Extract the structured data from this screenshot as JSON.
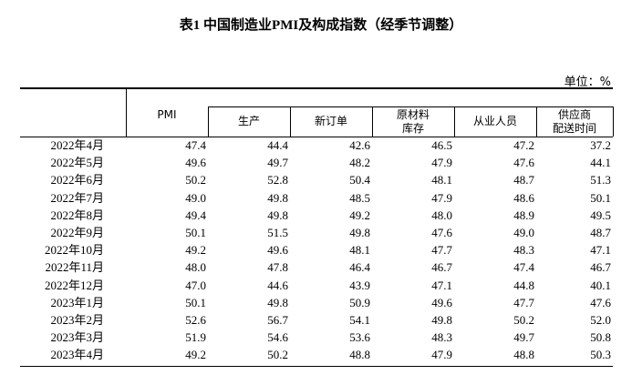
{
  "title": "表1 中国制造业PMI及构成指数（经季节调整）",
  "unit": "单位：%",
  "table": {
    "headers": [
      [
        "PMI"
      ],
      [
        "生产"
      ],
      [
        "新订单"
      ],
      [
        "原材料",
        "库存"
      ],
      [
        "从业人员"
      ],
      [
        "供应商",
        "配送时间"
      ]
    ],
    "rows": [
      [
        "2022年4月",
        "47.4",
        "44.4",
        "42.6",
        "46.5",
        "47.2",
        "37.2"
      ],
      [
        "2022年5月",
        "49.6",
        "49.7",
        "48.2",
        "47.9",
        "47.6",
        "44.1"
      ],
      [
        "2022年6月",
        "50.2",
        "52.8",
        "50.4",
        "48.1",
        "48.7",
        "51.3"
      ],
      [
        "2022年7月",
        "49.0",
        "49.8",
        "48.5",
        "47.9",
        "48.6",
        "50.1"
      ],
      [
        "2022年8月",
        "49.4",
        "49.8",
        "49.2",
        "48.0",
        "48.9",
        "49.5"
      ],
      [
        "2022年9月",
        "50.1",
        "51.5",
        "49.8",
        "47.6",
        "49.0",
        "48.7"
      ],
      [
        "2022年10月",
        "49.2",
        "49.6",
        "48.1",
        "47.7",
        "48.3",
        "47.1"
      ],
      [
        "2022年11月",
        "48.0",
        "47.8",
        "46.4",
        "46.7",
        "47.4",
        "46.7"
      ],
      [
        "2022年12月",
        "47.0",
        "44.6",
        "43.9",
        "47.1",
        "44.8",
        "40.1"
      ],
      [
        "2023年1月",
        "50.1",
        "49.8",
        "50.9",
        "49.6",
        "47.7",
        "47.6"
      ],
      [
        "2023年2月",
        "52.6",
        "56.7",
        "54.1",
        "49.8",
        "50.2",
        "52.0"
      ],
      [
        "2023年3月",
        "51.9",
        "54.6",
        "53.6",
        "48.3",
        "49.7",
        "50.8"
      ],
      [
        "2023年4月",
        "49.2",
        "50.2",
        "48.8",
        "47.9",
        "48.8",
        "50.3"
      ]
    ]
  }
}
